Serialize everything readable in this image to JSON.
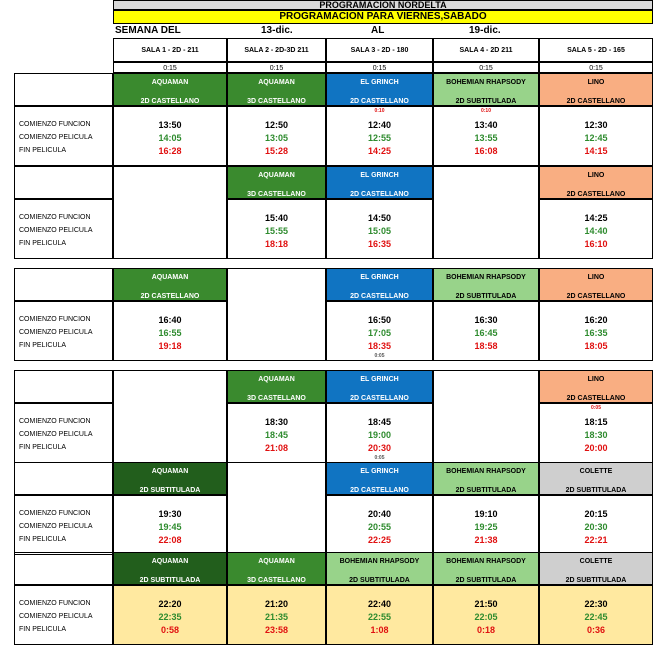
{
  "title": "PROGRAMACION NORDELTA",
  "subtitle": "PROGRAMACION PARA VIERNES,SABADO",
  "week": {
    "label": "SEMANA DEL",
    "from": "13-dic.",
    "sep": "AL",
    "to": "19-dic."
  },
  "rooms": [
    {
      "name": "SALA 1 - 2D - 211",
      "duration": "0:15"
    },
    {
      "name": "SALA 2 - 2D-3D 211",
      "duration": "0:15"
    },
    {
      "name": "SALA 3 - 2D - 180",
      "duration": "0:15"
    },
    {
      "name": "SALA 4 - 2D 211",
      "duration": "0:15"
    },
    {
      "name": "SALA 5 - 2D - 165",
      "duration": "0:15"
    }
  ],
  "row_labels": {
    "start_show": "COMIENZO FUNCION",
    "start_movie": "COMIENZO PELICULA",
    "end_movie": "FIN PELICULA"
  },
  "colors": {
    "aquaman_green": "#3a8a2e",
    "aquaman_dark": "#225e1c",
    "grinch_blue": "#1074c2",
    "bohemian_green": "#98d38a",
    "lino_peach": "#f9ae82",
    "colette_gray": "#cfcfcf",
    "late_yellow": "#ffe9a0",
    "title_yellow": "#ffff00"
  },
  "blocks": [
    {
      "cells": [
        {
          "movie": "AQUAMAN",
          "format": "2D CASTELLANO",
          "color": "green",
          "start": "13:50",
          "movie_start": "14:05",
          "end": "16:28"
        },
        {
          "movie": "AQUAMAN",
          "format": "3D CASTELLANO",
          "color": "green",
          "start": "12:50",
          "movie_start": "13:05",
          "end": "15:28"
        },
        {
          "movie": "EL GRINCH",
          "format": "2D CASTELLANO",
          "color": "blue",
          "note_top": "0:10",
          "start": "12:40",
          "movie_start": "12:55",
          "end": "14:25"
        },
        {
          "movie": "BOHEMIAN RHAPSODY",
          "format": "2D SUBTITULADA",
          "color": "ltgreen",
          "note_top": "0:10",
          "start": "13:40",
          "movie_start": "13:55",
          "end": "16:08"
        },
        {
          "movie": "LINO",
          "format": "2D CASTELLANO",
          "color": "peach",
          "start": "12:30",
          "movie_start": "12:45",
          "end": "14:15"
        }
      ]
    },
    {
      "cells": [
        null,
        {
          "movie": "AQUAMAN",
          "format": "3D CASTELLANO",
          "color": "green",
          "start": "15:40",
          "movie_start": "15:55",
          "end": "18:18"
        },
        {
          "movie": "EL GRINCH",
          "format": "2D CASTELLANO",
          "color": "blue",
          "start": "14:50",
          "movie_start": "15:05",
          "end": "16:35"
        },
        null,
        {
          "movie": "LINO",
          "format": "2D CASTELLANO",
          "color": "peach",
          "start": "14:25",
          "movie_start": "14:40",
          "end": "16:10"
        }
      ]
    },
    {
      "cells": [
        {
          "movie": "AQUAMAN",
          "format": "2D CASTELLANO",
          "color": "green",
          "start": "16:40",
          "movie_start": "16:55",
          "end": "19:18"
        },
        null,
        {
          "movie": "EL GRINCH",
          "format": "2D CASTELLANO",
          "color": "blue",
          "start": "16:50",
          "movie_start": "17:05",
          "end": "18:35",
          "note_bottom": "0:05"
        },
        {
          "movie": "BOHEMIAN RHAPSODY",
          "format": "2D SUBTITULADA",
          "color": "ltgreen",
          "start": "16:30",
          "movie_start": "16:45",
          "end": "18:58"
        },
        {
          "movie": "LINO",
          "format": "2D CASTELLANO",
          "color": "peach",
          "start": "16:20",
          "movie_start": "16:35",
          "end": "18:05"
        }
      ]
    },
    {
      "cells": [
        null,
        {
          "movie": "AQUAMAN",
          "format": "3D CASTELLANO",
          "color": "green",
          "start": "18:30",
          "movie_start": "18:45",
          "end": "21:08"
        },
        {
          "movie": "EL GRINCH",
          "format": "2D CASTELLANO",
          "color": "blue",
          "start": "18:45",
          "movie_start": "19:00",
          "end": "20:30",
          "note_bottom": "0:05"
        },
        null,
        {
          "movie": "LINO",
          "format": "2D CASTELLANO",
          "color": "peach",
          "note_top": "0:05",
          "start": "18:15",
          "movie_start": "18:30",
          "end": "20:00"
        }
      ]
    },
    {
      "cells": [
        {
          "movie": "AQUAMAN",
          "format": "2D SUBTITULADA",
          "color": "dkgreen",
          "start": "19:30",
          "movie_start": "19:45",
          "end": "22:08"
        },
        null,
        {
          "movie": "EL GRINCH",
          "format": "2D CASTELLANO",
          "color": "blue",
          "start": "20:40",
          "movie_start": "20:55",
          "end": "22:25"
        },
        {
          "movie": "BOHEMIAN RHAPSODY",
          "format": "2D SUBTITULADA",
          "color": "ltgreen",
          "start": "19:10",
          "movie_start": "19:25",
          "end": "21:38"
        },
        {
          "movie": "COLETTE",
          "format": "2D SUBTITULADA",
          "color": "gray",
          "start": "20:15",
          "movie_start": "20:30",
          "end": "22:21"
        }
      ]
    },
    {
      "late": true,
      "cells": [
        {
          "movie": "AQUAMAN",
          "format": "2D SUBTITULADA",
          "color": "dkgreen",
          "start": "22:20",
          "movie_start": "22:35",
          "end": "0:58"
        },
        {
          "movie": "AQUAMAN",
          "format": "3D CASTELLANO",
          "color": "green",
          "start": "21:20",
          "movie_start": "21:35",
          "end": "23:58"
        },
        {
          "movie": "BOHEMIAN RHAPSODY",
          "format": "2D SUBTITULADA",
          "color": "ltgreen",
          "start": "22:40",
          "movie_start": "22:55",
          "end": "1:08"
        },
        {
          "movie": "BOHEMIAN RHAPSODY",
          "format": "2D SUBTITULADA",
          "color": "ltgreen",
          "start": "21:50",
          "movie_start": "22:05",
          "end": "0:18"
        },
        {
          "movie": "COLETTE",
          "format": "2D SUBTITULADA",
          "color": "gray",
          "start": "22:30",
          "movie_start": "22:45",
          "end": "0:36"
        }
      ]
    }
  ]
}
